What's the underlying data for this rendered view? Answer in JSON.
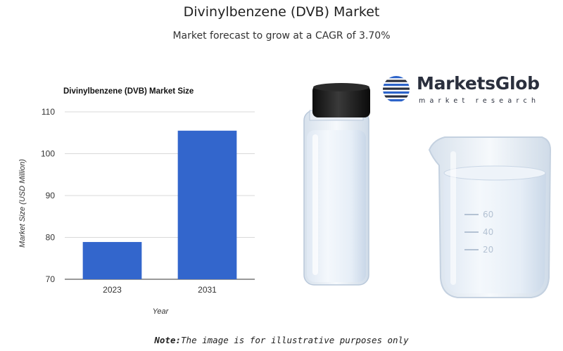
{
  "header": {
    "title": "Divinylbenzene (DVB) Market",
    "subtitle": "Market forecast to grow at a CAGR of 3.70%"
  },
  "logo": {
    "name": "MarketsGlob",
    "tagline": "market research",
    "color": "#2a2f3d",
    "accent": "#2c63c9"
  },
  "note": {
    "label": "Note:",
    "text": "The image is for illustrative purposes only"
  },
  "chart_data": {
    "type": "bar",
    "title": "Divinylbenzene (DVB) Market Size",
    "xlabel": "Year",
    "ylabel": "Market Size (USD Million)",
    "categories": [
      "2023",
      "2031"
    ],
    "values": [
      78.9,
      105.5
    ],
    "ylim": [
      70,
      110
    ],
    "yticks": [
      70,
      80,
      90,
      100,
      110
    ],
    "grid": true,
    "bar_color": "#3366cc"
  },
  "illustration": {
    "items": [
      "vial",
      "beaker"
    ],
    "beaker_marks": [
      "60",
      "40",
      "20"
    ]
  }
}
